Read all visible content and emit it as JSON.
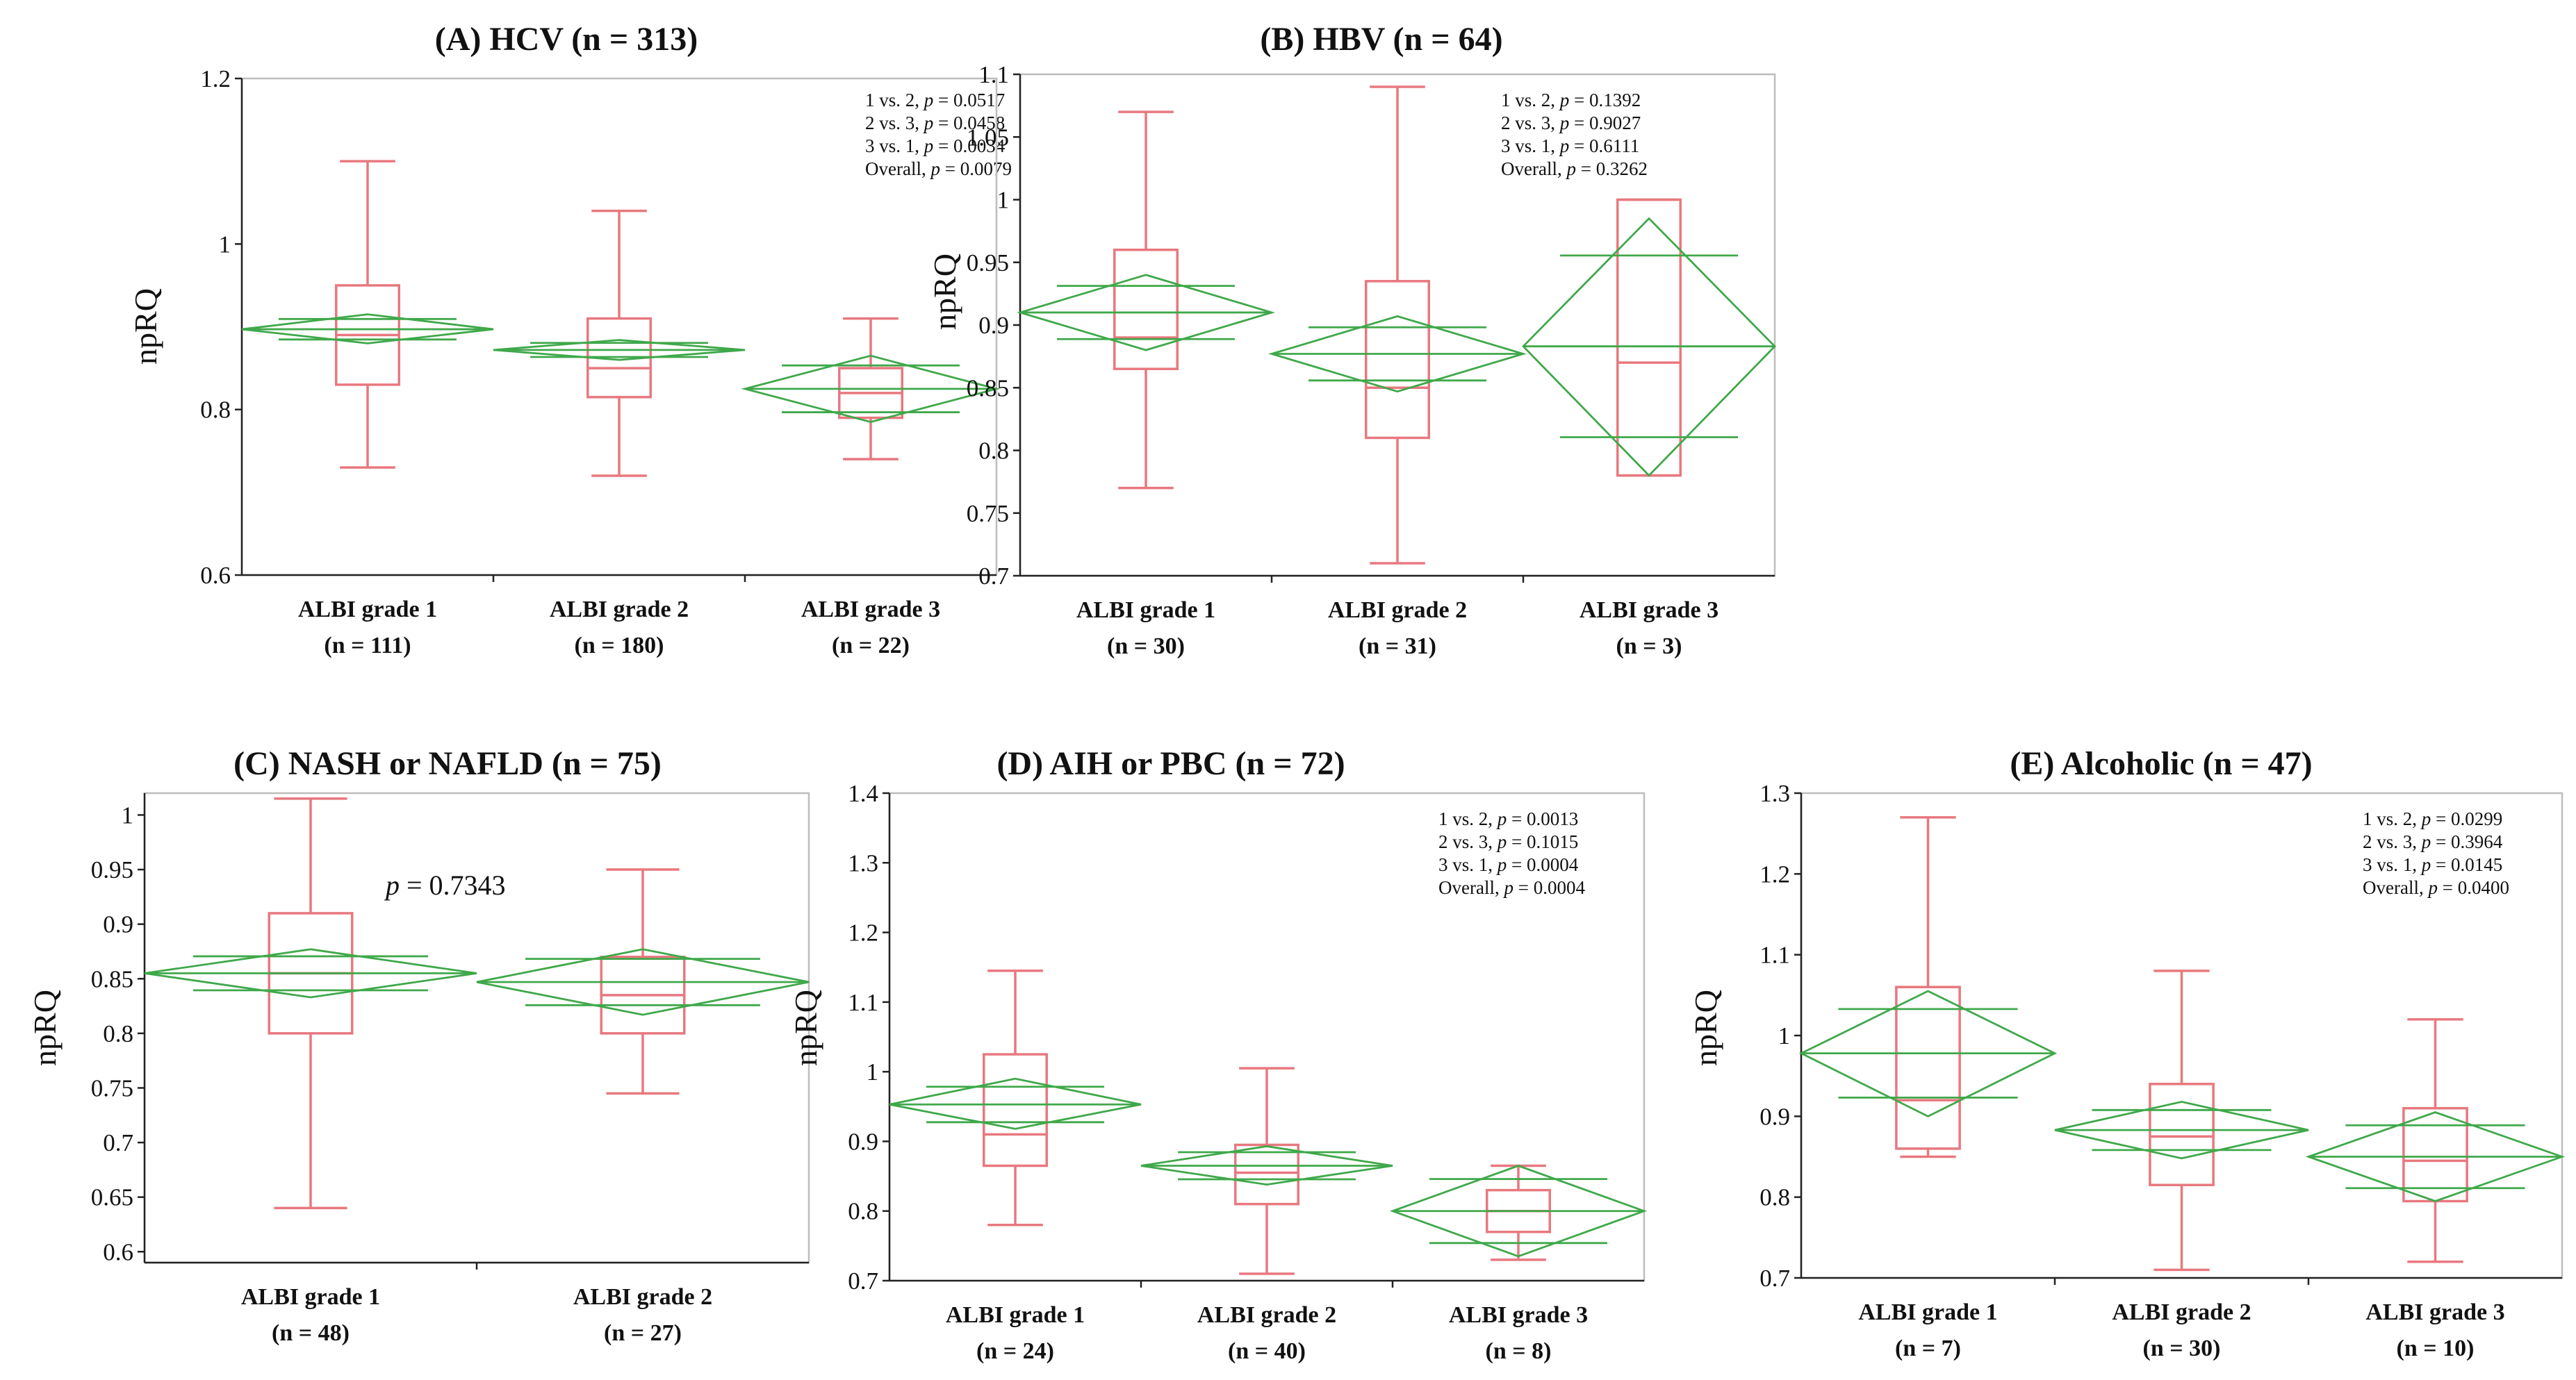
{
  "figure": {
    "colors": {
      "box": "#e8787f",
      "diamond": "#3fa84a"
    }
  },
  "chart_data": [
    {
      "type": "box",
      "title": "(A) HCV (n = 313)",
      "ylabel": "npRQ",
      "ylim": [
        0.6,
        1.2
      ],
      "yticks": [
        "0.6",
        "0.8",
        "1",
        "1.2"
      ],
      "categories": [
        {
          "line1": "ALBI grade 1",
          "line2": "(n = 111)"
        },
        {
          "line1": "ALBI grade 2",
          "line2": "(n = 180)"
        },
        {
          "line1": "ALBI grade 3",
          "line2": "(n = 22)"
        }
      ],
      "boxes": [
        {
          "min": 0.73,
          "q1": 0.83,
          "median": 0.89,
          "q3": 0.95,
          "max": 1.1
        },
        {
          "min": 0.72,
          "q1": 0.815,
          "median": 0.85,
          "q3": 0.91,
          "max": 1.04
        },
        {
          "min": 0.74,
          "q1": 0.79,
          "median": 0.82,
          "q3": 0.85,
          "max": 0.91
        }
      ],
      "diamonds": [
        {
          "mean": 0.897,
          "lower": 0.88,
          "upper": 0.915
        },
        {
          "mean": 0.872,
          "lower": 0.86,
          "upper": 0.884
        },
        {
          "mean": 0.825,
          "lower": 0.785,
          "upper": 0.865
        }
      ],
      "annotations": [
        {
          "prefix": "1 vs. 2, ",
          "p": "p",
          "suffix": " = 0.0517"
        },
        {
          "prefix": "2 vs. 3, ",
          "p": "p",
          "suffix": " = 0.0458"
        },
        {
          "prefix": "3 vs. 1, ",
          "p": "p",
          "suffix": " = 0.0034"
        },
        {
          "prefix": "Overall, ",
          "p": "p",
          "suffix": " = 0.0079"
        }
      ]
    },
    {
      "type": "box",
      "title": "(B) HBV (n = 64)",
      "ylabel": "npRQ",
      "ylim": [
        0.7,
        1.1
      ],
      "yticks": [
        "0.7",
        "0.75",
        "0.8",
        "0.85",
        "0.9",
        "0.95",
        "1",
        "1.05",
        "1.1"
      ],
      "categories": [
        {
          "line1": "ALBI grade 1",
          "line2": "(n = 30)"
        },
        {
          "line1": "ALBI grade 2",
          "line2": "(n = 31)"
        },
        {
          "line1": "ALBI grade 3",
          "line2": "(n = 3)"
        }
      ],
      "boxes": [
        {
          "min": 0.77,
          "q1": 0.865,
          "median": 0.89,
          "q3": 0.96,
          "max": 1.07
        },
        {
          "min": 0.71,
          "q1": 0.81,
          "median": 0.85,
          "q3": 0.935,
          "max": 1.09
        },
        {
          "min": 0.78,
          "q1": 0.78,
          "median": 0.87,
          "q3": 1.0,
          "max": 1.0
        }
      ],
      "diamonds": [
        {
          "mean": 0.91,
          "lower": 0.88,
          "upper": 0.94
        },
        {
          "mean": 0.877,
          "lower": 0.847,
          "upper": 0.907
        },
        {
          "mean": 0.883,
          "lower": 0.78,
          "upper": 0.985
        }
      ],
      "annotations": [
        {
          "prefix": "1 vs. 2, ",
          "p": "p",
          "suffix": " = 0.1392"
        },
        {
          "prefix": "2 vs. 3, ",
          "p": "p",
          "suffix": " = 0.9027"
        },
        {
          "prefix": "3 vs. 1, ",
          "p": "p",
          "suffix": " = 0.6111"
        },
        {
          "prefix": "Overall, ",
          "p": "p",
          "suffix": " = 0.3262"
        }
      ]
    },
    {
      "type": "box",
      "title": "(C) NASH or NAFLD (n = 75)",
      "ylabel": "npRQ",
      "ylim": [
        0.59,
        1.02
      ],
      "yticks": [
        "0.6",
        "0.65",
        "0.7",
        "0.75",
        "0.8",
        "0.85",
        "0.9",
        "0.95",
        "1"
      ],
      "categories": [
        {
          "line1": "ALBI grade 1",
          "line2": "(n = 48)"
        },
        {
          "line1": "ALBI grade 2",
          "line2": "(n = 27)"
        }
      ],
      "boxes": [
        {
          "min": 0.64,
          "q1": 0.8,
          "median": 0.855,
          "q3": 0.91,
          "max": 1.015
        },
        {
          "min": 0.745,
          "q1": 0.8,
          "median": 0.835,
          "q3": 0.87,
          "max": 0.95
        }
      ],
      "diamonds": [
        {
          "mean": 0.855,
          "lower": 0.833,
          "upper": 0.877
        },
        {
          "mean": 0.847,
          "lower": 0.817,
          "upper": 0.877
        }
      ],
      "annotations": [
        {
          "prefix": "",
          "p": "p",
          "suffix": " = 0.7343"
        }
      ]
    },
    {
      "type": "box",
      "title": "(D) AIH or PBC (n = 72)",
      "ylabel": "npRQ",
      "ylim": [
        0.7,
        1.4
      ],
      "yticks": [
        "0.7",
        "0.8",
        "0.9",
        "1",
        "1.1",
        "1.2",
        "1.3",
        "1.4"
      ],
      "categories": [
        {
          "line1": "ALBI grade 1",
          "line2": "(n = 24)"
        },
        {
          "line1": "ALBI grade 2",
          "line2": "(n = 40)"
        },
        {
          "line1": "ALBI grade 3",
          "line2": "(n = 8)"
        }
      ],
      "boxes": [
        {
          "min": 0.78,
          "q1": 0.865,
          "median": 0.91,
          "q3": 1.025,
          "max": 1.145
        },
        {
          "min": 0.71,
          "q1": 0.81,
          "median": 0.855,
          "q3": 0.895,
          "max": 1.005
        },
        {
          "min": 0.73,
          "q1": 0.77,
          "median": 0.8,
          "q3": 0.83,
          "max": 0.865
        }
      ],
      "diamonds": [
        {
          "mean": 0.953,
          "lower": 0.918,
          "upper": 0.99
        },
        {
          "mean": 0.865,
          "lower": 0.838,
          "upper": 0.893
        },
        {
          "mean": 0.8,
          "lower": 0.735,
          "upper": 0.865
        }
      ],
      "annotations": [
        {
          "prefix": "1 vs. 2, ",
          "p": "p",
          "suffix": " = 0.0013"
        },
        {
          "prefix": "2 vs. 3, ",
          "p": "p",
          "suffix": " = 0.1015"
        },
        {
          "prefix": "3 vs. 1, ",
          "p": "p",
          "suffix": " = 0.0004"
        },
        {
          "prefix": "Overall, ",
          "p": "p",
          "suffix": " = 0.0004"
        }
      ]
    },
    {
      "type": "box",
      "title": "(E) Alcoholic (n = 47)",
      "ylabel": "npRQ",
      "ylim": [
        0.7,
        1.3
      ],
      "yticks": [
        "0.7",
        "0.8",
        "0.9",
        "1",
        "1.1",
        "1.2",
        "1.3"
      ],
      "categories": [
        {
          "line1": "ALBI grade 1",
          "line2": "(n = 7)"
        },
        {
          "line1": "ALBI grade 2",
          "line2": "(n = 30)"
        },
        {
          "line1": "ALBI grade 3",
          "line2": "(n = 10)"
        }
      ],
      "boxes": [
        {
          "min": 0.85,
          "q1": 0.86,
          "median": 0.92,
          "q3": 1.06,
          "max": 1.27
        },
        {
          "min": 0.71,
          "q1": 0.815,
          "median": 0.875,
          "q3": 0.94,
          "max": 1.08
        },
        {
          "min": 0.72,
          "q1": 0.795,
          "median": 0.845,
          "q3": 0.91,
          "max": 1.02
        }
      ],
      "diamonds": [
        {
          "mean": 0.978,
          "lower": 0.9,
          "upper": 1.055
        },
        {
          "mean": 0.883,
          "lower": 0.848,
          "upper": 0.918
        },
        {
          "mean": 0.85,
          "lower": 0.795,
          "upper": 0.905
        }
      ],
      "annotations": [
        {
          "prefix": "1 vs. 2, ",
          "p": "p",
          "suffix": " = 0.0299"
        },
        {
          "prefix": "2 vs. 3, ",
          "p": "p",
          "suffix": " = 0.3964"
        },
        {
          "prefix": "3 vs. 1, ",
          "p": "p",
          "suffix": " = 0.0145"
        },
        {
          "prefix": "Overall, ",
          "p": "p",
          "suffix": " = 0.0400"
        }
      ]
    }
  ]
}
